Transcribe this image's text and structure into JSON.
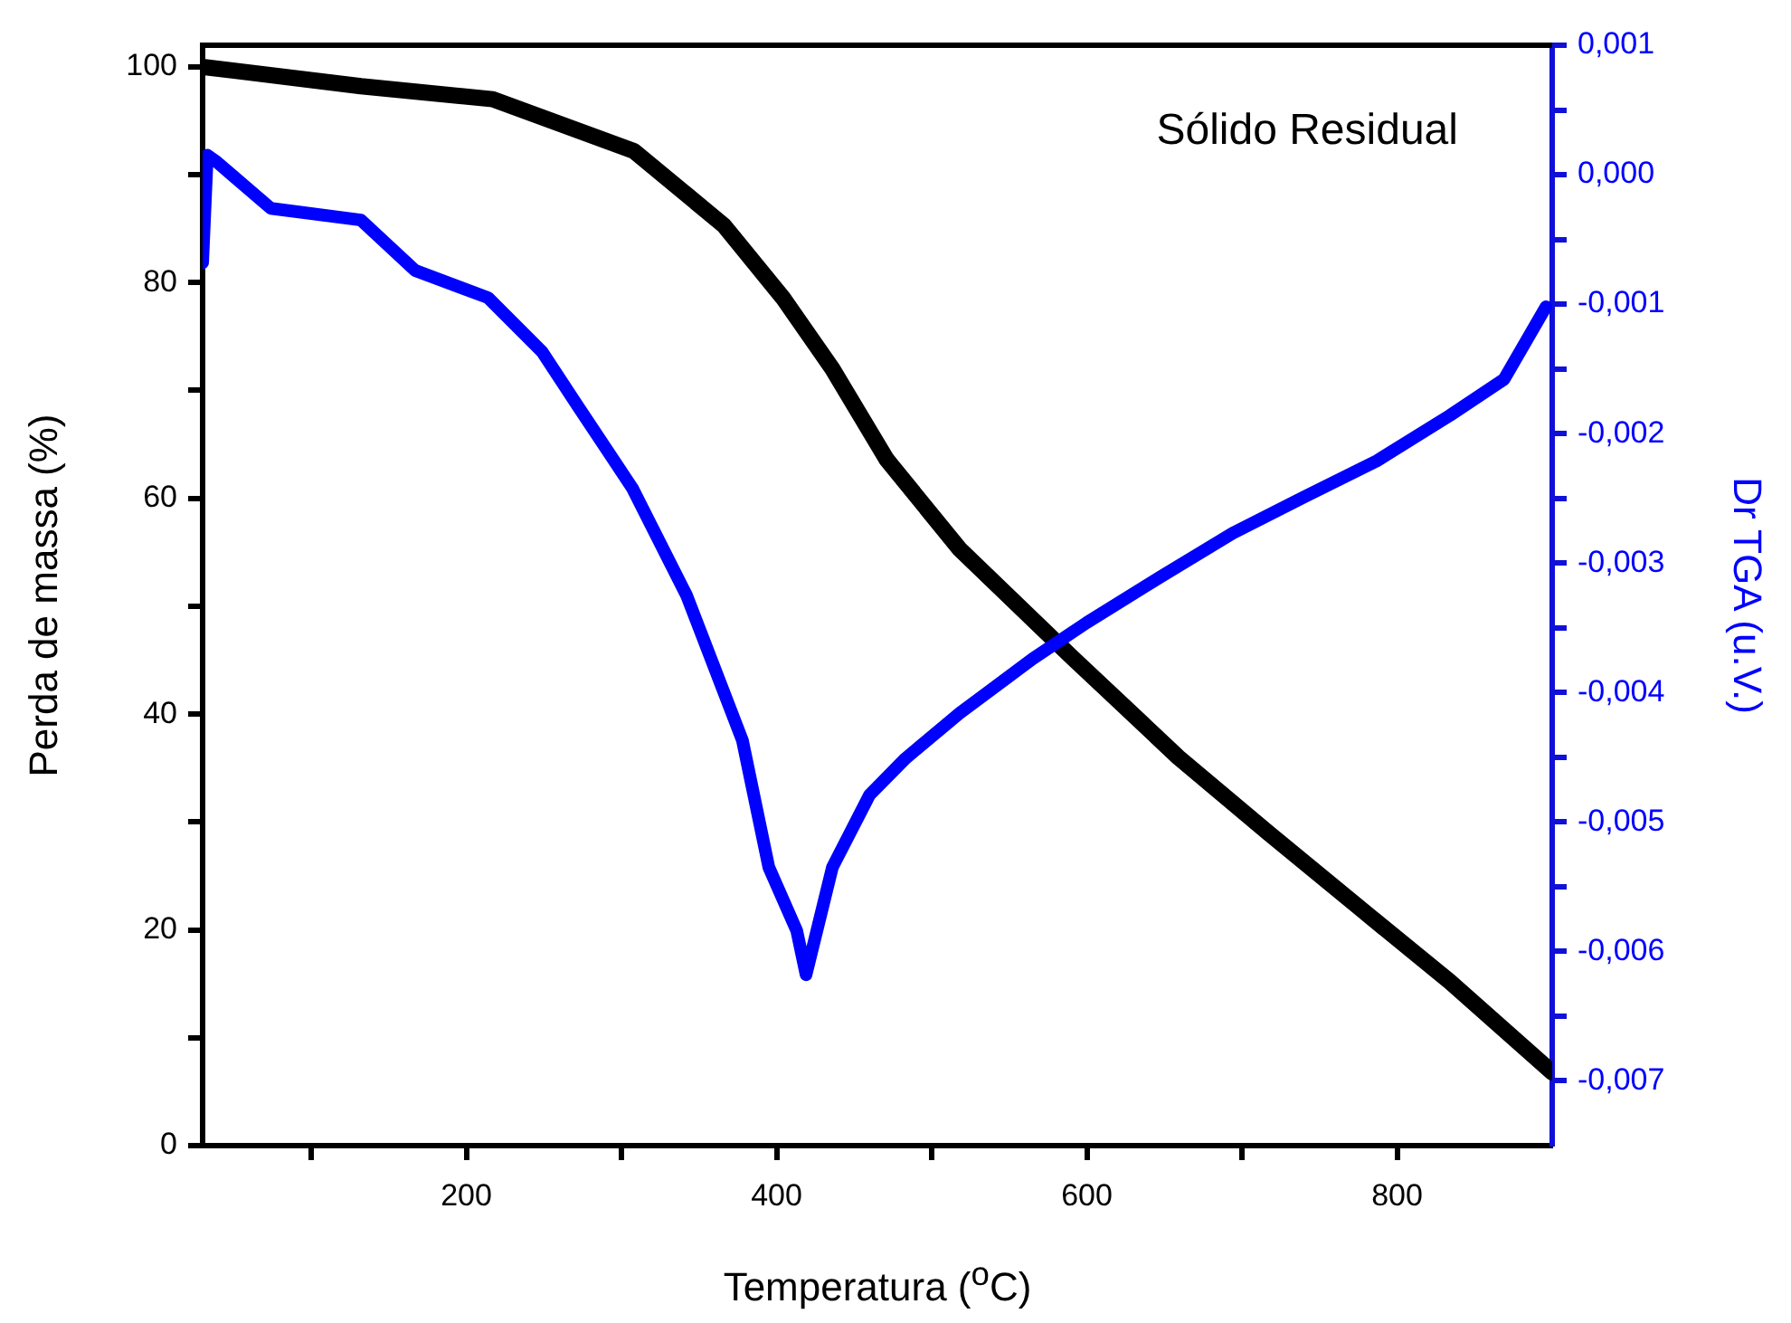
{
  "chart_data": {
    "type": "line",
    "xlabel": "Temperatura ($^{o}$C)",
    "ylabel": "Perda de massa (%)",
    "y2label": "Dr TGA (u.V.)",
    "annotations": [
      "Sólido Residual"
    ],
    "xlim": [
      30,
      900
    ],
    "xticks": [
      {
        "value": 100,
        "label": null
      },
      200,
      {
        "value": 300,
        "label": null
      },
      400,
      {
        "value": 500,
        "label": null
      },
      600,
      {
        "value": 700,
        "label": null
      },
      800
    ],
    "ylim": [
      0,
      102
    ],
    "yticks": [
      0,
      {
        "value": 10,
        "label": null
      },
      20,
      {
        "value": 30,
        "label": null
      },
      40,
      {
        "value": 50,
        "label": null
      },
      60,
      {
        "value": 70,
        "label": null
      },
      80,
      {
        "value": 90,
        "label": null
      },
      100
    ],
    "y2lim": [
      -0.0075,
      0.001
    ],
    "y2ticks": [
      {
        "value": -0.007,
        "label": "-0,007"
      },
      {
        "value": -0.0065,
        "label": null
      },
      {
        "value": -0.006,
        "label": "-0,006"
      },
      {
        "value": -0.0055,
        "label": null
      },
      {
        "value": -0.005,
        "label": "-0,005"
      },
      {
        "value": -0.0045,
        "label": null
      },
      {
        "value": -0.004,
        "label": "-0,004"
      },
      {
        "value": -0.0035,
        "label": null
      },
      {
        "value": -0.003,
        "label": "-0,003"
      },
      {
        "value": -0.0025,
        "label": null
      },
      {
        "value": -0.002,
        "label": "-0,002"
      },
      {
        "value": -0.0015,
        "label": null
      },
      {
        "value": -0.001,
        "label": "-0,001"
      },
      {
        "value": -0.0005,
        "label": null
      },
      {
        "value": 0,
        "label": "0,000"
      },
      {
        "value": 0.0005,
        "label": null
      },
      {
        "value": 0.001,
        "label": "0,001"
      }
    ],
    "grid": false,
    "legend": false,
    "marker": "none",
    "line_style": "solid",
    "series": [
      {
        "color": "#000000",
        "x": [
          30,
          132,
          217,
          308,
          366,
          404,
          436,
          471,
          518,
          591,
          659,
          717,
          777,
          834,
          900
        ],
        "values": [
          100,
          98.2,
          97,
          92.2,
          85.3,
          78.6,
          72,
          63.6,
          55.3,
          45.2,
          36,
          29,
          21.9,
          15.2,
          6.8
        ]
      },
      {
        "axis": "y2",
        "color": "#0000ff",
        "x": [
          30,
          33,
          39,
          74,
          132,
          167,
          214,
          249,
          272,
          307,
          342,
          378,
          395,
          413,
          419,
          436,
          460,
          483,
          518,
          565,
          600,
          647,
          694,
          740,
          787,
          834,
          869,
          896
        ],
        "values": [
          -0.00068,
          0.00015,
          0.0001,
          -0.00026,
          -0.00035,
          -0.00074,
          -0.00095,
          -0.00137,
          -0.00179,
          -0.00242,
          -0.00325,
          -0.00437,
          -0.00535,
          -0.00584,
          -0.00618,
          -0.00535,
          -0.00479,
          -0.00451,
          -0.00416,
          -0.00374,
          -0.00346,
          -0.00311,
          -0.00277,
          -0.00249,
          -0.00221,
          -0.00186,
          -0.00158,
          -0.00102
        ]
      }
    ]
  }
}
